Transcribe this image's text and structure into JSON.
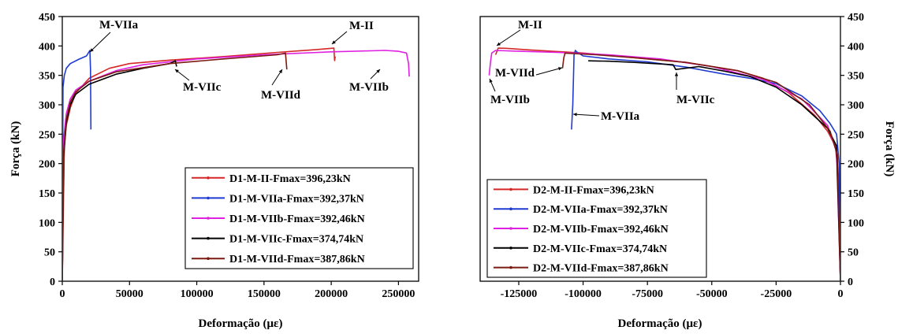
{
  "chart_data": [
    {
      "type": "line",
      "xlabel": "Deformação (με)",
      "ylabel": "Força (kN)",
      "xlim": [
        0,
        265000
      ],
      "ylim": [
        0,
        450
      ],
      "xticks": [
        0,
        50000,
        100000,
        150000,
        200000,
        250000
      ],
      "xtick_labels": [
        "0",
        "50000",
        "100000",
        "150000",
        "200000",
        "250000"
      ],
      "yticks": [
        0,
        50,
        100,
        150,
        200,
        250,
        300,
        350,
        400,
        450
      ],
      "ytick_labels": [
        "0",
        "50",
        "100",
        "150",
        "200",
        "250",
        "300",
        "350",
        "400",
        "450"
      ],
      "y_axis_side": "left",
      "legend_position": "bottom-right",
      "series": [
        {
          "name": "D1-M-II-Fmax=396,23kN",
          "color": "#d62728",
          "x": [
            0,
            1500,
            3000,
            6000,
            10000,
            20000,
            35000,
            50000,
            80000,
            120000,
            160000,
            190000,
            202000,
            202500,
            203000
          ],
          "y": [
            0,
            230,
            265,
            295,
            320,
            345,
            362,
            370,
            376,
            382,
            389,
            394,
            396.23,
            375,
            382
          ]
        },
        {
          "name": "D1-M-VIIa-Fmax=392,37kN",
          "color": "#1f3bd1",
          "x": [
            0,
            500,
            1500,
            3000,
            6000,
            12000,
            18000,
            20500,
            21000,
            21300
          ],
          "y": [
            0,
            330,
            350,
            362,
            370,
            377,
            383,
            392.37,
            360,
            258
          ]
        },
        {
          "name": "D1-M-VIIb-Fmax=392,46kN",
          "color": "#e020e0",
          "x": [
            0,
            1000,
            3000,
            6000,
            10000,
            20000,
            40000,
            60000,
            100000,
            150000,
            200000,
            240000,
            250000,
            256000,
            257500,
            258000
          ],
          "y": [
            0,
            240,
            285,
            310,
            325,
            340,
            358,
            368,
            378,
            385,
            390,
            392.46,
            391,
            388,
            370,
            348
          ]
        },
        {
          "name": "D1-M-VIIc-Fmax=374,74kN",
          "color": "#000000",
          "x": [
            0,
            1000,
            3000,
            6000,
            10000,
            20000,
            40000,
            60000,
            80000,
            84000,
            85000
          ],
          "y": [
            0,
            210,
            270,
            300,
            318,
            335,
            352,
            362,
            370,
            374.74,
            365
          ]
        },
        {
          "name": "D1-M-VIId-Fmax=387,86kN",
          "color": "#7a1a10",
          "x": [
            0,
            1000,
            3000,
            6000,
            10000,
            20000,
            40000,
            80000,
            120000,
            160000,
            166000,
            167000
          ],
          "y": [
            0,
            220,
            275,
            305,
            322,
            340,
            356,
            370,
            378,
            385,
            387.86,
            360
          ]
        }
      ]
    },
    {
      "type": "line",
      "xlabel": "Deformação (με)",
      "ylabel": "Força (kN)",
      "xlim": [
        -140000,
        0
      ],
      "ylim": [
        0,
        450
      ],
      "xticks": [
        -125000,
        -100000,
        -75000,
        -50000,
        -25000,
        0
      ],
      "xtick_labels": [
        "-125000",
        "-100000",
        "-75000",
        "-50000",
        "-25000",
        "0"
      ],
      "yticks": [
        0,
        50,
        100,
        150,
        200,
        250,
        300,
        350,
        400,
        450
      ],
      "ytick_labels": [
        "0",
        "50",
        "100",
        "150",
        "200",
        "250",
        "300",
        "350",
        "400",
        "450"
      ],
      "y_axis_side": "right",
      "legend_position": "bottom-left",
      "series": [
        {
          "name": "D2-M-II-Fmax=396,23kN",
          "color": "#d62728",
          "x": [
            -134000,
            -133000,
            -130000,
            -120000,
            -100000,
            -80000,
            -60000,
            -40000,
            -30000,
            -20000,
            -10000,
            -5000,
            -2000,
            -800,
            0
          ],
          "y": [
            385,
            396.23,
            396,
            393,
            388,
            380,
            372,
            358,
            345,
            320,
            282,
            255,
            230,
            180,
            0
          ]
        },
        {
          "name": "D2-M-VIIa-Fmax=392,37kN",
          "color": "#1f3bd1",
          "x": [
            -104500,
            -104000,
            -103500,
            -103000,
            -102500,
            -100000,
            -90000,
            -75000,
            -60000,
            -45000,
            -35000,
            -25000,
            -15000,
            -8000,
            -4000,
            -1500,
            -500,
            0
          ],
          "y": [
            258,
            300,
            385,
            392.37,
            390,
            383,
            378,
            373,
            364,
            352,
            345,
            336,
            315,
            290,
            268,
            250,
            200,
            0
          ]
        },
        {
          "name": "D2-M-VIIb-Fmax=392,46kN",
          "color": "#e020e0",
          "x": [
            -136500,
            -136000,
            -135500,
            -134000,
            -125000,
            -110000,
            -90000,
            -70000,
            -50000,
            -30000,
            -15000,
            -5000,
            -1500,
            0
          ],
          "y": [
            350,
            372,
            388,
            392.46,
            391,
            389,
            385,
            378,
            365,
            343,
            310,
            265,
            220,
            0
          ]
        },
        {
          "name": "D2-M-VIIc-Fmax=374,74kN",
          "color": "#000000",
          "x": [
            -98000,
            -90000,
            -80000,
            -65000,
            -64000,
            -55000,
            -45000,
            -35000,
            -25000,
            -15000,
            -5000,
            -1500,
            0
          ],
          "y": [
            374.74,
            374,
            372,
            368,
            360,
            365,
            357,
            348,
            330,
            300,
            260,
            230,
            0
          ]
        },
        {
          "name": "D2-M-VIId-Fmax=387,86kN",
          "color": "#7a1a10",
          "x": [
            -108000,
            -107500,
            -107000,
            -104000,
            -95000,
            -80000,
            -60000,
            -40000,
            -25000,
            -12000,
            -4000,
            -1200,
            0
          ],
          "y": [
            362,
            380,
            387.86,
            387,
            385,
            380,
            372,
            358,
            338,
            300,
            255,
            215,
            0
          ]
        }
      ]
    }
  ],
  "annotations": {
    "left": [
      "M-VIIa",
      "M-II",
      "M-VIIc",
      "M-VIId",
      "M-VIIb"
    ],
    "right": [
      "M-II",
      "M-VIId",
      "M-VIIb",
      "M-VIIa",
      "M-VIIc"
    ]
  }
}
